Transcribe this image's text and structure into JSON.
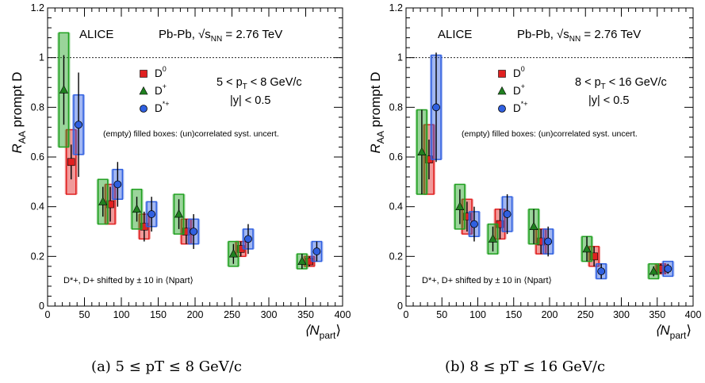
{
  "chart_data": [
    {
      "type": "scatter",
      "experiment": "ALICE",
      "system_label": "Pb-Pb, √s",
      "system_sub": "NN",
      "system_value": " = 2.76 TeV",
      "ylabel_main": "R",
      "ylabel_sub": "AA",
      "ylabel_rest": " prompt D",
      "xlabel_open": "⟨N",
      "xlabel_sub": "part",
      "xlabel_close": "⟩",
      "pt_range": "5 < p",
      "pt_sub": "T",
      "pt_rest": " < 8 GeV/c",
      "rapidity": "|y| < 0.5",
      "syst_note": "(empty) filled boxes: (un)correlated syst. uncert.",
      "shift_note": "D*+, D+ shifted by ± 10 in ⟨Npart⟩",
      "caption": "(a) 5 ≤ pT ≤ 8 GeV/c",
      "xlim": [
        0,
        400
      ],
      "ylim": [
        0,
        1.2
      ],
      "xticks": [
        "0",
        "50",
        "100",
        "150",
        "200",
        "250",
        "300",
        "350",
        "400"
      ],
      "yticks": [
        "0",
        "0.2",
        "0.4",
        "0.6",
        "0.8",
        "1",
        "1.2"
      ],
      "reference_line": 1,
      "series": [
        {
          "name": "D0",
          "label": "D",
          "sup": "0",
          "color": "#e02020",
          "marker": "square",
          "points": [
            {
              "x": 32,
              "y": 0.58,
              "stat": 0.07,
              "unc": 0.13,
              "cor": 0.04
            },
            {
              "x": 85,
              "y": 0.41,
              "stat": 0.07,
              "unc": 0.08,
              "cor": 0.03
            },
            {
              "x": 131,
              "y": 0.32,
              "stat": 0.06,
              "unc": 0.05,
              "cor": 0.02
            },
            {
              "x": 188,
              "y": 0.3,
              "stat": 0.05,
              "unc": 0.05,
              "cor": 0.02
            },
            {
              "x": 262,
              "y": 0.23,
              "stat": 0.03,
              "unc": 0.03,
              "cor": 0.02
            },
            {
              "x": 355,
              "y": 0.18,
              "stat": 0.02,
              "unc": 0.02,
              "cor": 0.01
            }
          ]
        },
        {
          "name": "D+",
          "label": "D",
          "sup": "+",
          "color": "#20a020",
          "marker": "triangle",
          "points": [
            {
              "x": 22,
              "y": 0.87,
              "stat": 0.14,
              "unc": 0.23,
              "cor": 0.06
            },
            {
              "x": 75,
              "y": 0.42,
              "stat": 0.06,
              "unc": 0.09,
              "cor": 0.03
            },
            {
              "x": 121,
              "y": 0.39,
              "stat": 0.05,
              "unc": 0.08,
              "cor": 0.03
            },
            {
              "x": 178,
              "y": 0.37,
              "stat": 0.06,
              "unc": 0.08,
              "cor": 0.02
            },
            {
              "x": 252,
              "y": 0.21,
              "stat": 0.04,
              "unc": 0.05,
              "cor": 0.01
            },
            {
              "x": 345,
              "y": 0.18,
              "stat": 0.03,
              "unc": 0.03,
              "cor": 0.01
            }
          ]
        },
        {
          "name": "D*+",
          "label": "D",
          "sup": "*+",
          "color": "#3060e0",
          "marker": "circle",
          "points": [
            {
              "x": 42,
              "y": 0.73,
              "stat": 0.21,
              "unc": 0.12,
              "cor": 0.05
            },
            {
              "x": 95,
              "y": 0.49,
              "stat": 0.09,
              "unc": 0.06,
              "cor": 0.03
            },
            {
              "x": 141,
              "y": 0.37,
              "stat": 0.07,
              "unc": 0.05,
              "cor": 0.02
            },
            {
              "x": 198,
              "y": 0.3,
              "stat": 0.07,
              "unc": 0.05,
              "cor": 0.02
            },
            {
              "x": 272,
              "y": 0.27,
              "stat": 0.06,
              "unc": 0.04,
              "cor": 0.02
            },
            {
              "x": 365,
              "y": 0.22,
              "stat": 0.04,
              "unc": 0.04,
              "cor": 0.01
            }
          ]
        }
      ]
    },
    {
      "type": "scatter",
      "experiment": "ALICE",
      "system_label": "Pb-Pb, √s",
      "system_sub": "NN",
      "system_value": " = 2.76 TeV",
      "ylabel_main": "R",
      "ylabel_sub": "AA",
      "ylabel_rest": " prompt D",
      "xlabel_open": "⟨N",
      "xlabel_sub": "part",
      "xlabel_close": "⟩",
      "pt_range": "8 < p",
      "pt_sub": "T",
      "pt_rest": " < 16 GeV/c",
      "rapidity": "|y| < 0.5",
      "syst_note": "(empty) filled boxes: (un)correlated syst. uncert.",
      "shift_note": "D*+, D+ shifted by ± 10 in ⟨Npart⟩",
      "caption": "(b) 8 ≤ pT ≤ 16 GeV/c",
      "xlim": [
        0,
        400
      ],
      "ylim": [
        0,
        1.2
      ],
      "xticks": [
        "0",
        "50",
        "100",
        "150",
        "200",
        "250",
        "300",
        "350",
        "400"
      ],
      "yticks": [
        "0",
        "0.2",
        "0.4",
        "0.6",
        "0.8",
        "1",
        "1.2"
      ],
      "reference_line": 1,
      "series": [
        {
          "name": "D0",
          "label": "D",
          "sup": "0",
          "color": "#e02020",
          "marker": "square",
          "points": [
            {
              "x": 32,
              "y": 0.59,
              "stat": 0.08,
              "unc": 0.14,
              "cor": 0.04
            },
            {
              "x": 85,
              "y": 0.36,
              "stat": 0.06,
              "unc": 0.07,
              "cor": 0.03
            },
            {
              "x": 131,
              "y": 0.33,
              "stat": 0.06,
              "unc": 0.06,
              "cor": 0.02
            },
            {
              "x": 188,
              "y": 0.26,
              "stat": 0.05,
              "unc": 0.05,
              "cor": 0.02
            },
            {
              "x": 262,
              "y": 0.2,
              "stat": 0.04,
              "unc": 0.04,
              "cor": 0.01
            },
            {
              "x": 355,
              "y": 0.15,
              "stat": 0.02,
              "unc": 0.02,
              "cor": 0.01
            }
          ]
        },
        {
          "name": "D+",
          "label": "D",
          "sup": "+",
          "color": "#20a020",
          "marker": "triangle",
          "points": [
            {
              "x": 22,
              "y": 0.62,
              "stat": 0.17,
              "unc": 0.17,
              "cor": 0.05
            },
            {
              "x": 75,
              "y": 0.4,
              "stat": 0.07,
              "unc": 0.09,
              "cor": 0.03
            },
            {
              "x": 121,
              "y": 0.27,
              "stat": 0.05,
              "unc": 0.06,
              "cor": 0.02
            },
            {
              "x": 178,
              "y": 0.32,
              "stat": 0.07,
              "unc": 0.07,
              "cor": 0.02
            },
            {
              "x": 252,
              "y": 0.23,
              "stat": 0.05,
              "unc": 0.05,
              "cor": 0.01
            },
            {
              "x": 345,
              "y": 0.14,
              "stat": 0.02,
              "unc": 0.03,
              "cor": 0.01
            }
          ]
        },
        {
          "name": "D*+",
          "label": "D",
          "sup": "*+",
          "color": "#3060e0",
          "marker": "circle",
          "points": [
            {
              "x": 42,
              "y": 0.8,
              "stat": 0.22,
              "unc": 0.21,
              "cor": 0.05
            },
            {
              "x": 95,
              "y": 0.33,
              "stat": 0.07,
              "unc": 0.05,
              "cor": 0.02
            },
            {
              "x": 141,
              "y": 0.37,
              "stat": 0.08,
              "unc": 0.07,
              "cor": 0.02
            },
            {
              "x": 198,
              "y": 0.26,
              "stat": 0.06,
              "unc": 0.05,
              "cor": 0.02
            },
            {
              "x": 272,
              "y": 0.14,
              "stat": 0.03,
              "unc": 0.03,
              "cor": 0.01
            },
            {
              "x": 365,
              "y": 0.15,
              "stat": 0.02,
              "unc": 0.03,
              "cor": 0.01
            }
          ]
        }
      ]
    }
  ]
}
